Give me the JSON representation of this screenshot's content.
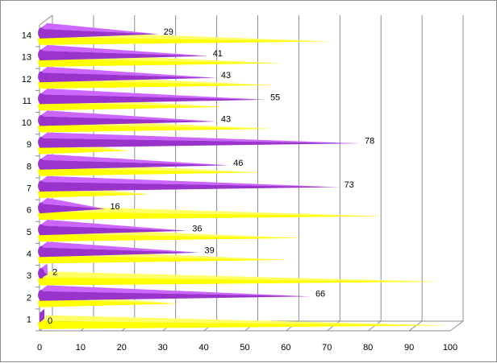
{
  "chart_data": {
    "type": "bar",
    "orientation": "horizontal",
    "categories": [
      "1",
      "2",
      "3",
      "4",
      "5",
      "6",
      "7",
      "8",
      "9",
      "10",
      "11",
      "12",
      "13",
      "14"
    ],
    "series": [
      {
        "values": [
          0,
          66,
          2,
          39,
          36,
          16,
          73,
          46,
          78,
          43,
          55,
          43,
          41,
          29
        ],
        "color": "#9933cc",
        "labeled": true
      },
      {
        "values": [
          100,
          34,
          98,
          61,
          64,
          84,
          27,
          54,
          22,
          57,
          45,
          57,
          59,
          71
        ],
        "color": "#ffff00",
        "labeled": false
      }
    ],
    "xlim": [
      0,
      100
    ],
    "x_ticks": [
      0,
      10,
      20,
      30,
      40,
      50,
      60,
      70,
      80,
      90,
      100
    ],
    "grid": true,
    "style": "3d-cone"
  }
}
